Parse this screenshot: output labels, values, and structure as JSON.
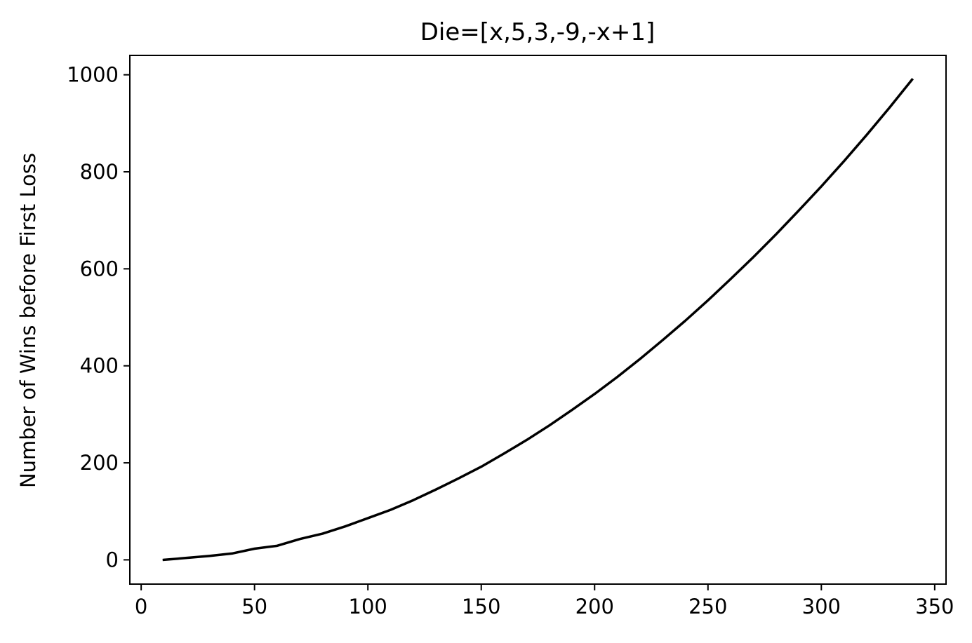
{
  "chart_data": {
    "type": "line",
    "title": "Die=[x,5,3,-9,-x+1]",
    "xlabel": "",
    "ylabel": "Number of Wins before First Loss",
    "xlim": [
      -5,
      355
    ],
    "ylim": [
      -50,
      1040
    ],
    "grid": false,
    "xticks": [
      0,
      50,
      100,
      150,
      200,
      250,
      300,
      350
    ],
    "yticks": [
      0,
      200,
      400,
      600,
      800,
      1000
    ],
    "series": [
      {
        "color": "#000000",
        "x": [
          10,
          20,
          30,
          40,
          50,
          60,
          70,
          80,
          90,
          100,
          110,
          120,
          130,
          140,
          150,
          160,
          170,
          180,
          190,
          200,
          210,
          220,
          230,
          240,
          250,
          260,
          270,
          280,
          290,
          300,
          310,
          320,
          330,
          340
        ],
        "y": [
          0,
          4,
          8,
          13,
          23,
          29,
          43,
          54,
          69,
          86,
          103,
          123,
          145,
          168,
          192,
          219,
          247,
          277,
          309,
          342,
          377,
          414,
          453,
          493,
          535,
          579,
          624,
          671,
          720,
          770,
          822,
          876,
          932,
          990
        ]
      }
    ]
  }
}
